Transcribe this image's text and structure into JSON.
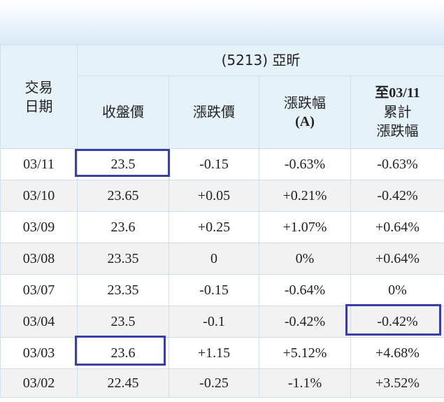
{
  "table": {
    "title": "(5213) 亞昕",
    "headers": {
      "date": [
        "交易",
        "日期"
      ],
      "close": "收盤價",
      "change": "漲跌價",
      "change_pct": [
        "漲跌幅",
        "(A)"
      ],
      "cumulative": [
        "至03/11",
        "累計",
        "漲跌幅"
      ]
    },
    "rows": [
      {
        "date": "03/11",
        "close": "23.5",
        "close_dir": "down",
        "change": "-0.15",
        "change_dir": "down",
        "pct": "-0.63%",
        "pct_dir": "down",
        "cum": "-0.63%",
        "cum_dir": "down"
      },
      {
        "date": "03/10",
        "close": "23.65",
        "close_dir": "up",
        "change": "+0.05",
        "change_dir": "up",
        "pct": "+0.21%",
        "pct_dir": "up",
        "cum": "-0.42%",
        "cum_dir": "down"
      },
      {
        "date": "03/09",
        "close": "23.6",
        "close_dir": "up",
        "change": "+0.25",
        "change_dir": "up",
        "pct": "+1.07%",
        "pct_dir": "up",
        "cum": "+0.64%",
        "cum_dir": "up"
      },
      {
        "date": "03/08",
        "close": "23.35",
        "close_dir": "flat",
        "change": "0",
        "change_dir": "flat",
        "pct": "0%",
        "pct_dir": "flat",
        "cum": "+0.64%",
        "cum_dir": "up"
      },
      {
        "date": "03/07",
        "close": "23.35",
        "close_dir": "down",
        "change": "-0.15",
        "change_dir": "down",
        "pct": "-0.64%",
        "pct_dir": "down",
        "cum": "0%",
        "cum_dir": "flat"
      },
      {
        "date": "03/04",
        "close": "23.5",
        "close_dir": "down",
        "change": "-0.1",
        "change_dir": "down",
        "pct": "-0.42%",
        "pct_dir": "down",
        "cum": "-0.42%",
        "cum_dir": "down"
      },
      {
        "date": "03/03",
        "close": "23.6",
        "close_dir": "up",
        "change": "+1.15",
        "change_dir": "up",
        "pct": "+5.12%",
        "pct_dir": "up",
        "cum": "+4.68%",
        "cum_dir": "up"
      },
      {
        "date": "03/02",
        "close": "22.45",
        "close_dir": "down",
        "change": "-0.25",
        "change_dir": "down",
        "pct": "-1.1%",
        "pct_dir": "down",
        "cum": "+3.52%",
        "cum_dir": "up"
      }
    ]
  },
  "colors": {
    "up": "#e0191b",
    "down": "#1e8a24",
    "flat": "#222222",
    "header_bg": "#e6f2fa",
    "alt_row_bg": "#f2f2f2",
    "highlight_border": "#3a3fa8"
  }
}
